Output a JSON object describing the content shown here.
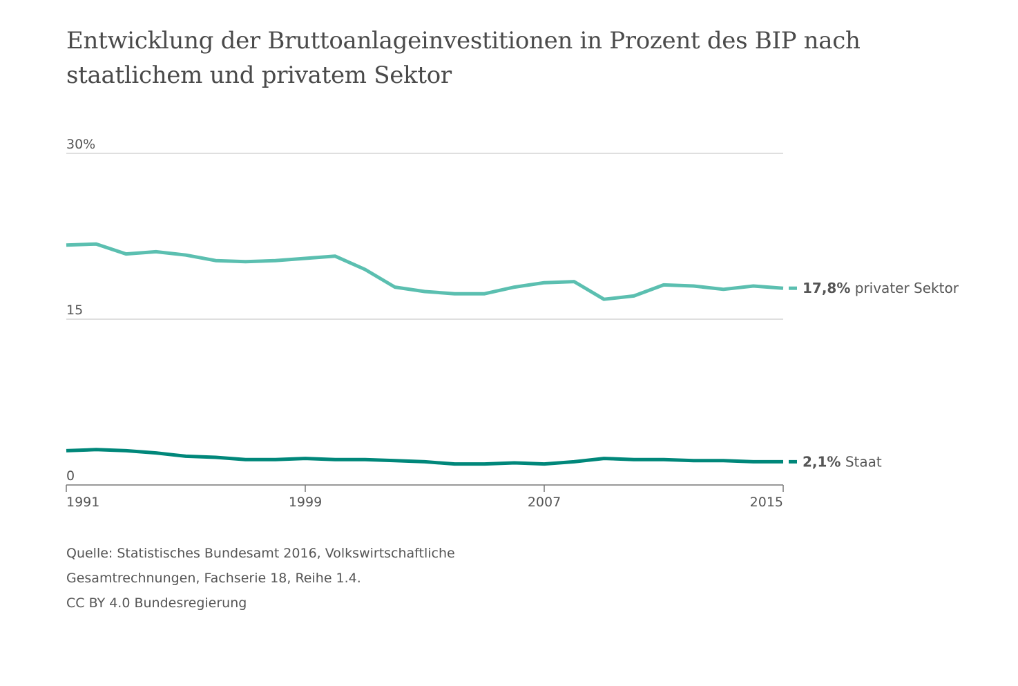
{
  "chart_data": {
    "type": "line",
    "title": "Entwicklung der Bruttoanlageinvestitionen in Prozent des BIP nach staatlichem und privatem Sektor",
    "ylim": [
      0,
      30
    ],
    "xlim": [
      1991,
      2015
    ],
    "y_ticks": [
      {
        "value": 30,
        "label": "30%"
      },
      {
        "value": 15,
        "label": "15"
      },
      {
        "value": 0,
        "label": "0"
      }
    ],
    "x_ticks": [
      {
        "value": 1991,
        "label": "1991"
      },
      {
        "value": 1999,
        "label": "1999"
      },
      {
        "value": 2007,
        "label": "2007"
      },
      {
        "value": 2015,
        "label": "2015"
      }
    ],
    "grid": true,
    "legend": "end-of-line labels",
    "x": [
      1991,
      1992,
      1993,
      1994,
      1995,
      1996,
      1997,
      1998,
      1999,
      2000,
      2001,
      2002,
      2003,
      2004,
      2005,
      2006,
      2007,
      2008,
      2009,
      2010,
      2011,
      2012,
      2013,
      2014,
      2015
    ],
    "series": [
      {
        "name": "privater Sektor",
        "color": "#5bbfb0",
        "end_value": "17,8%",
        "values": [
          21.7,
          21.8,
          20.9,
          21.1,
          20.8,
          20.3,
          20.2,
          20.3,
          20.5,
          20.7,
          19.5,
          17.9,
          17.5,
          17.3,
          17.3,
          17.9,
          18.3,
          18.4,
          16.8,
          17.1,
          18.1,
          18.0,
          17.7,
          18.0,
          17.8
        ]
      },
      {
        "name": "Staat",
        "color": "#00877a",
        "end_value": "2,1%",
        "values": [
          3.1,
          3.2,
          3.1,
          2.9,
          2.6,
          2.5,
          2.3,
          2.3,
          2.4,
          2.3,
          2.3,
          2.2,
          2.1,
          1.9,
          1.9,
          2.0,
          1.9,
          2.1,
          2.4,
          2.3,
          2.3,
          2.2,
          2.2,
          2.1,
          2.1
        ]
      }
    ],
    "source": [
      "Quelle: Statistisches Bundesamt 2016, Volkswirtschaftliche",
      "Gesamtrechnungen, Fachserie 18, Reihe 1.4.",
      "CC BY 4.0 Bundesregierung"
    ]
  }
}
